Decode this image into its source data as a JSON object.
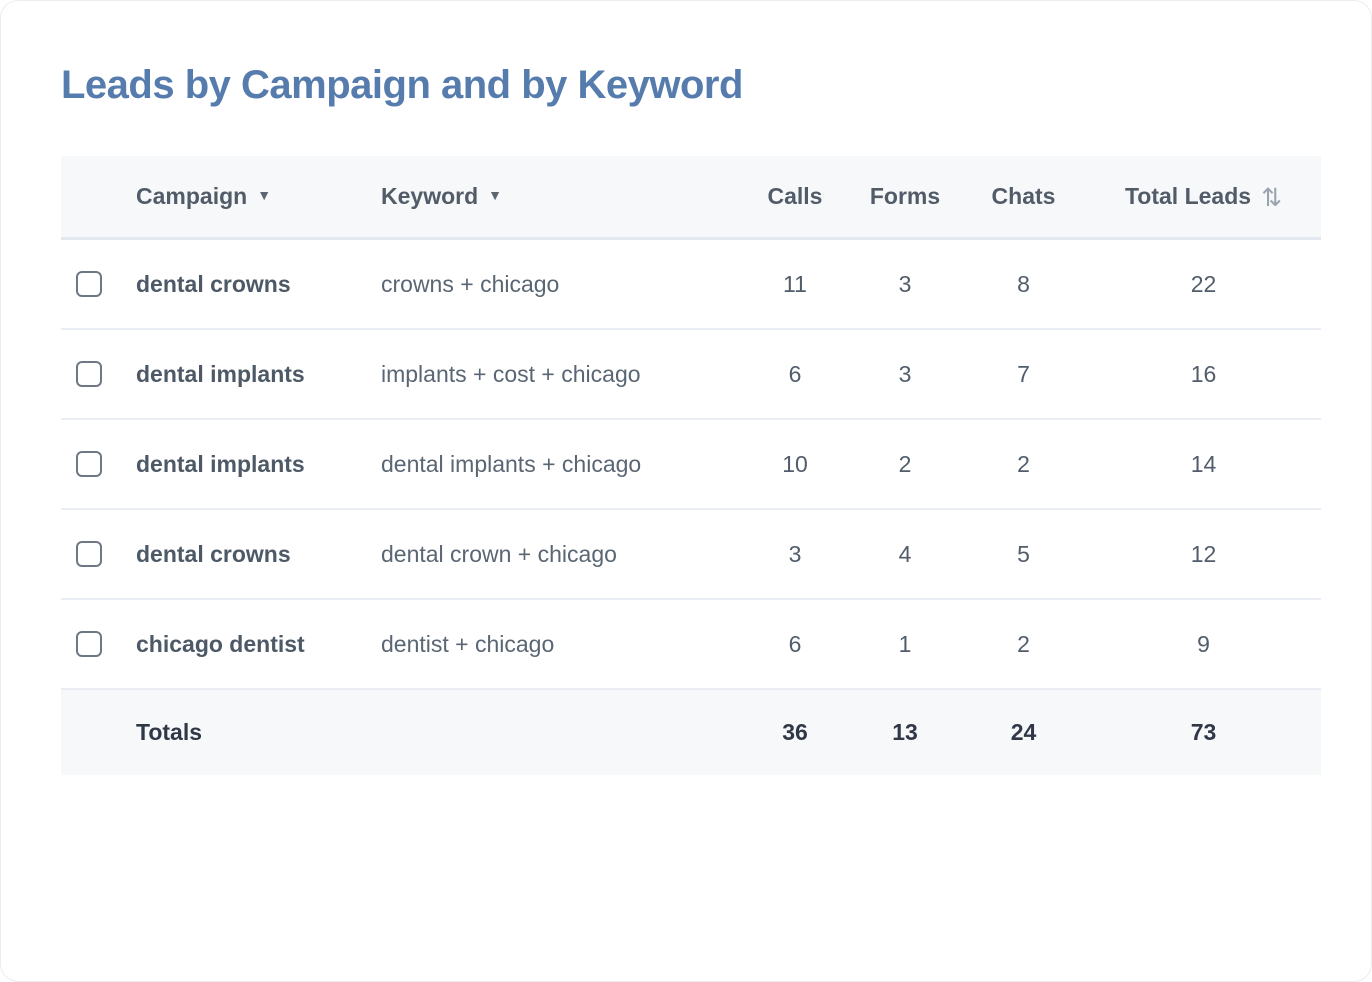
{
  "page": {
    "title": "Leads by Campaign and by Keyword"
  },
  "table": {
    "columns": {
      "campaign": "Campaign",
      "keyword": "Keyword",
      "calls": "Calls",
      "forms": "Forms",
      "chats": "Chats",
      "total_leads": "Total Leads"
    },
    "icons": {
      "campaign_caret": "▼",
      "keyword_caret": "▼",
      "total_leads_sort": "⇅"
    },
    "rows": [
      {
        "campaign": "dental crowns",
        "keyword": "crowns + chicago",
        "calls": "11",
        "forms": "3",
        "chats": "8",
        "total_leads": "22"
      },
      {
        "campaign": "dental implants",
        "keyword": "implants + cost + chicago",
        "calls": "6",
        "forms": "3",
        "chats": "7",
        "total_leads": "16"
      },
      {
        "campaign": "dental implants",
        "keyword": "dental implants + chicago",
        "calls": "10",
        "forms": "2",
        "chats": "2",
        "total_leads": "14"
      },
      {
        "campaign": "dental crowns",
        "keyword": "dental crown + chicago",
        "calls": "3",
        "forms": "4",
        "chats": "5",
        "total_leads": "12"
      },
      {
        "campaign": "chicago dentist",
        "keyword": "dentist + chicago",
        "calls": "6",
        "forms": "1",
        "chats": "2",
        "total_leads": "9"
      }
    ],
    "totals": {
      "label": "Totals",
      "calls": "36",
      "forms": "13",
      "chats": "24",
      "total_leads": "73"
    }
  },
  "colors": {
    "title": "#567cad",
    "header_text": "#515c68",
    "body_text": "#515d6a",
    "totals_text": "#303848",
    "header_bg": "#f7f8f9",
    "totals_bg": "#f7f8fa",
    "divider_thick": "#e3e7ef",
    "divider_thin": "#eaedf3",
    "checkbox_border": "#6e7883",
    "sort_icon": "#9aa4b1"
  }
}
